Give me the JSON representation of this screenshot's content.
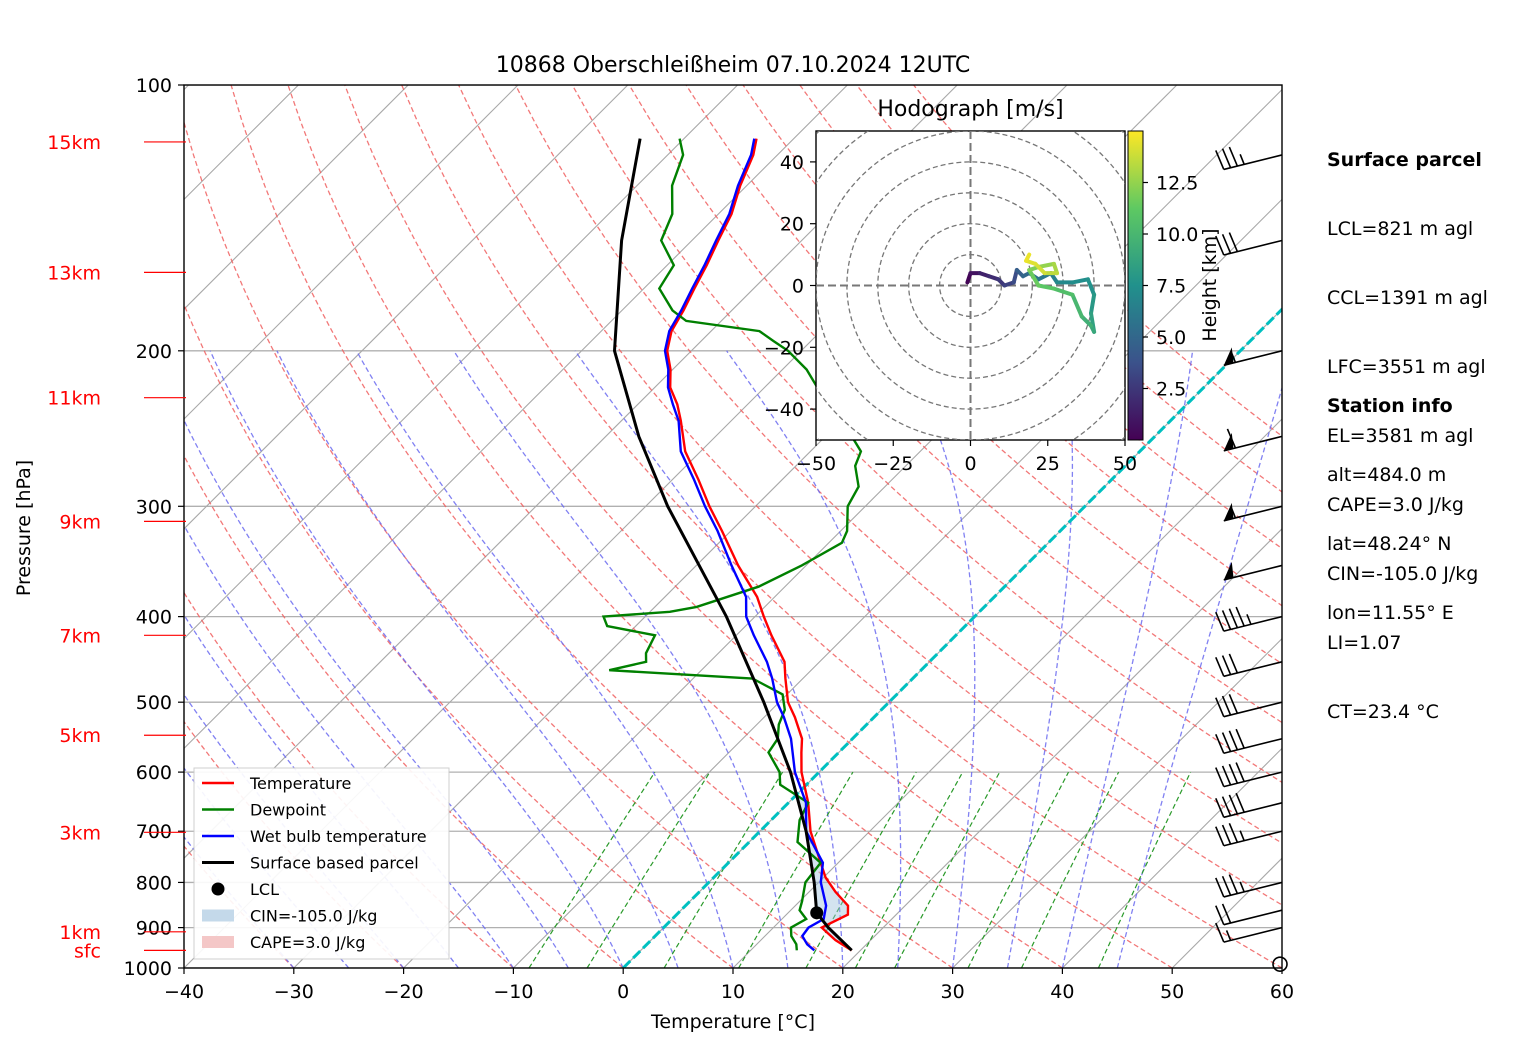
{
  "chart_data": {
    "type": "line",
    "title": "10868 Oberschleißheim 07.10.2024 12UTC",
    "xlabel": "Temperature [°C]",
    "ylabel": "Pressure [hPa]",
    "xlim": [
      -40,
      60
    ],
    "ylim": [
      1000,
      100
    ],
    "y_scale": "log",
    "grid": true,
    "x_ticks": [
      "−40",
      "−30",
      "−20",
      "−10",
      "0",
      "10",
      "20",
      "30",
      "40",
      "50",
      "60"
    ],
    "y_ticks": [
      "1000",
      "900",
      "800",
      "700",
      "600",
      "500",
      "400",
      "300",
      "200",
      "100"
    ],
    "height_labels": [
      {
        "label": "sfc",
        "p": 955
      },
      {
        "label": "1km",
        "p": 910
      },
      {
        "label": "3km",
        "p": 702
      },
      {
        "label": "5km",
        "p": 545
      },
      {
        "label": "7km",
        "p": 420
      },
      {
        "label": "9km",
        "p": 312
      },
      {
        "label": "11km",
        "p": 226
      },
      {
        "label": "13km",
        "p": 163
      },
      {
        "label": "15km",
        "p": 116
      }
    ],
    "legend_position": "lower-left",
    "legend": [
      "Temperature",
      "Dewpoint",
      "Wet bulb temperature",
      "Surface based parcel",
      "LCL",
      "CIN=-105.0 J/kg",
      "CAPE=3.0 J/kg"
    ],
    "series": [
      {
        "name": "Temperature",
        "color": "#ff0000",
        "points": [
          [
            955,
            19.2
          ],
          [
            930,
            16.8
          ],
          [
            900,
            14.4
          ],
          [
            870,
            15.6
          ],
          [
            850,
            14.8
          ],
          [
            820,
            12.4
          ],
          [
            790,
            10.2
          ],
          [
            760,
            8.4
          ],
          [
            700,
            4.6
          ],
          [
            650,
            1.8
          ],
          [
            600,
            -1.6
          ],
          [
            570,
            -3.4
          ],
          [
            550,
            -4.6
          ],
          [
            520,
            -7.2
          ],
          [
            500,
            -9.2
          ],
          [
            470,
            -11.6
          ],
          [
            450,
            -13.2
          ],
          [
            420,
            -16.8
          ],
          [
            400,
            -19.2
          ],
          [
            380,
            -21.6
          ],
          [
            350,
            -26.2
          ],
          [
            320,
            -30.8
          ],
          [
            300,
            -34.2
          ],
          [
            280,
            -37.6
          ],
          [
            260,
            -41.4
          ],
          [
            240,
            -44.6
          ],
          [
            230,
            -46.4
          ],
          [
            220,
            -48.6
          ],
          [
            210,
            -50.2
          ],
          [
            200,
            -52.2
          ],
          [
            190,
            -53.6
          ],
          [
            180,
            -54.4
          ],
          [
            170,
            -55.4
          ],
          [
            160,
            -56.4
          ],
          [
            150,
            -57.6
          ],
          [
            140,
            -58.8
          ],
          [
            130,
            -60.6
          ],
          [
            120,
            -62.2
          ],
          [
            115,
            -63.4
          ]
        ]
      },
      {
        "name": "Dewpoint",
        "color": "#008000",
        "points": [
          [
            955,
            14.2
          ],
          [
            940,
            13.6
          ],
          [
            920,
            12.4
          ],
          [
            900,
            11.6
          ],
          [
            880,
            12.2
          ],
          [
            860,
            10.8
          ],
          [
            840,
            10.2
          ],
          [
            800,
            8.8
          ],
          [
            760,
            8.4
          ],
          [
            720,
            4.4
          ],
          [
            680,
            2.6
          ],
          [
            650,
            1.8
          ],
          [
            620,
            -2.4
          ],
          [
            600,
            -3.6
          ],
          [
            570,
            -6.4
          ],
          [
            550,
            -6.8
          ],
          [
            530,
            -8.0
          ],
          [
            510,
            -8.8
          ],
          [
            490,
            -10.4
          ],
          [
            470,
            -14.6
          ],
          [
            460,
            -28.4
          ],
          [
            450,
            -25.8
          ],
          [
            440,
            -26.6
          ],
          [
            420,
            -27.4
          ],
          [
            410,
            -32.6
          ],
          [
            400,
            -33.8
          ],
          [
            395,
            -28.2
          ],
          [
            390,
            -26.2
          ],
          [
            370,
            -22.4
          ],
          [
            350,
            -20.4
          ],
          [
            330,
            -18.8
          ],
          [
            320,
            -19.4
          ],
          [
            300,
            -21.6
          ],
          [
            285,
            -22.4
          ],
          [
            270,
            -24.6
          ],
          [
            260,
            -25.4
          ],
          [
            250,
            -27.6
          ],
          [
            240,
            -29.4
          ],
          [
            230,
            -32.8
          ],
          [
            220,
            -35.2
          ],
          [
            210,
            -37.8
          ],
          [
            200,
            -41.2
          ],
          [
            195,
            -43.4
          ],
          [
            190,
            -45.6
          ],
          [
            185,
            -53.2
          ],
          [
            180,
            -55.4
          ],
          [
            170,
            -58.6
          ],
          [
            160,
            -59.4
          ],
          [
            150,
            -62.8
          ],
          [
            140,
            -64.2
          ],
          [
            130,
            -66.8
          ],
          [
            120,
            -68.6
          ],
          [
            115,
            -70.4
          ]
        ]
      },
      {
        "name": "Wet bulb temperature",
        "color": "#0000ff",
        "points": [
          [
            955,
            15.8
          ],
          [
            940,
            14.6
          ],
          [
            920,
            13.4
          ],
          [
            900,
            13.2
          ],
          [
            880,
            13.8
          ],
          [
            850,
            12.8
          ],
          [
            800,
            10.2
          ],
          [
            760,
            8.6
          ],
          [
            700,
            4.2
          ],
          [
            650,
            1.6
          ],
          [
            600,
            -2.2
          ],
          [
            570,
            -4.2
          ],
          [
            550,
            -5.6
          ],
          [
            520,
            -8.2
          ],
          [
            500,
            -10.2
          ],
          [
            470,
            -12.8
          ],
          [
            450,
            -14.8
          ],
          [
            420,
            -18.4
          ],
          [
            400,
            -20.8
          ],
          [
            380,
            -22.6
          ],
          [
            350,
            -26.8
          ],
          [
            320,
            -31.2
          ],
          [
            300,
            -34.6
          ],
          [
            280,
            -38.0
          ],
          [
            260,
            -41.8
          ],
          [
            240,
            -44.8
          ],
          [
            230,
            -46.8
          ],
          [
            220,
            -48.8
          ],
          [
            210,
            -50.4
          ],
          [
            200,
            -52.4
          ],
          [
            190,
            -53.8
          ],
          [
            180,
            -54.6
          ],
          [
            170,
            -55.6
          ],
          [
            160,
            -56.6
          ],
          [
            150,
            -57.8
          ],
          [
            140,
            -59.0
          ],
          [
            130,
            -60.8
          ],
          [
            120,
            -62.4
          ],
          [
            115,
            -63.6
          ]
        ]
      },
      {
        "name": "Surface based parcel",
        "color": "#000000",
        "points": [
          [
            955,
            19.2
          ],
          [
            900,
            15.0
          ],
          [
            866,
            12.6
          ],
          [
            800,
            9.6
          ],
          [
            700,
            4.2
          ],
          [
            600,
            -2.6
          ],
          [
            500,
            -11.4
          ],
          [
            400,
            -22.6
          ],
          [
            300,
            -38.0
          ],
          [
            250,
            -47.0
          ],
          [
            200,
            -57.0
          ],
          [
            150,
            -66.4
          ],
          [
            115,
            -74.0
          ]
        ]
      }
    ],
    "lcl": {
      "p": 866,
      "t": 12.6
    },
    "cin": "-105.0 J/kg",
    "cape": "3.0 J/kg",
    "wind_barbs": [
      {
        "p": 990,
        "speed_kt": 0
      },
      {
        "p": 900,
        "speed_kt": 15
      },
      {
        "p": 860,
        "speed_kt": 20
      },
      {
        "p": 800,
        "speed_kt": 35
      },
      {
        "p": 700,
        "speed_kt": 35
      },
      {
        "p": 650,
        "speed_kt": 40
      },
      {
        "p": 600,
        "speed_kt": 40
      },
      {
        "p": 550,
        "speed_kt": 40
      },
      {
        "p": 500,
        "speed_kt": 30
      },
      {
        "p": 450,
        "speed_kt": 30
      },
      {
        "p": 400,
        "speed_kt": 45
      },
      {
        "p": 350,
        "speed_kt": 50
      },
      {
        "p": 300,
        "speed_kt": 55
      },
      {
        "p": 250,
        "speed_kt": 60
      },
      {
        "p": 200,
        "speed_kt": 55
      },
      {
        "p": 150,
        "speed_kt": 30
      },
      {
        "p": 120,
        "speed_kt": 35
      }
    ],
    "hodograph": {
      "title": "Hodograph [m/s]",
      "xlim": [
        -50,
        50
      ],
      "ylim": [
        -50,
        50
      ],
      "x_ticks": [
        "−50",
        "−25",
        "0",
        "25",
        "50"
      ],
      "y_ticks": [
        "40",
        "20",
        "0",
        "−20",
        "−40"
      ],
      "colorbar_label": "Height [km]",
      "colorbar_ticks": [
        "2.5",
        "5.0",
        "7.5",
        "10.0",
        "12.5"
      ],
      "colormap": "viridis",
      "points": [
        [
          -1,
          1,
          0.2
        ],
        [
          0,
          4,
          0.8
        ],
        [
          3,
          4,
          1.5
        ],
        [
          6,
          3,
          2.0
        ],
        [
          9,
          2,
          2.5
        ],
        [
          11,
          0,
          3.0
        ],
        [
          14,
          1,
          3.5
        ],
        [
          15,
          5,
          4.5
        ],
        [
          17,
          3,
          5.0
        ],
        [
          19,
          4,
          5.5
        ],
        [
          22,
          2,
          6.0
        ],
        [
          26,
          4,
          6.5
        ],
        [
          28,
          1,
          7.0
        ],
        [
          33,
          1,
          7.3
        ],
        [
          38,
          2,
          7.6
        ],
        [
          40,
          -3,
          8.0
        ],
        [
          39,
          -9,
          8.5
        ],
        [
          40,
          -15,
          9.0
        ],
        [
          39,
          -13,
          9.5
        ],
        [
          36,
          -10,
          10.0
        ],
        [
          33,
          -3,
          10.5
        ],
        [
          27,
          -1,
          11.0
        ],
        [
          22,
          0,
          11.5
        ],
        [
          19,
          5,
          12.0
        ],
        [
          22,
          6,
          12.5
        ],
        [
          27,
          7,
          13.0
        ],
        [
          28,
          4,
          13.5
        ],
        [
          24,
          4,
          14.0
        ],
        [
          21,
          7,
          14.3
        ],
        [
          18,
          8,
          14.6
        ],
        [
          19,
          10,
          15.0
        ]
      ]
    },
    "annotations": {
      "surface_parcel_title": "Surface parcel",
      "surface_parcel_lines": [
        "LCL=821 m agl",
        "CCL=1391 m agl",
        "LFC=3551 m agl",
        "EL=3581 m agl",
        "CAPE=3.0 J/kg",
        "CIN=-105.0 J/kg",
        "LI=1.07",
        "CT=23.4 °C"
      ],
      "station_title": "Station info",
      "station_lines": [
        "alt=484.0 m",
        "lat=48.24° N",
        "lon=11.55° E"
      ]
    }
  }
}
